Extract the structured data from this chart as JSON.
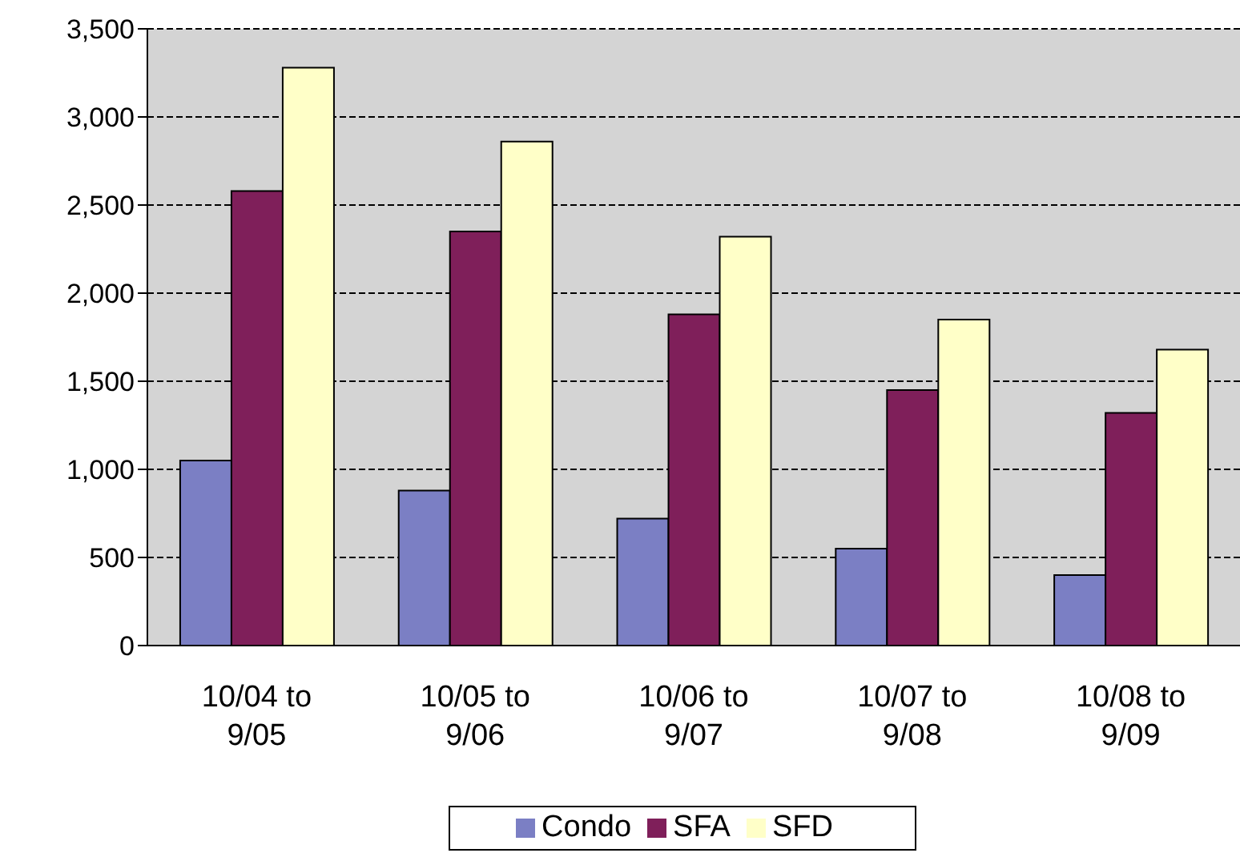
{
  "chart_data": {
    "type": "bar",
    "categories": [
      "10/04 to 9/05",
      "10/05 to 9/06",
      "10/06 to 9/07",
      "10/07 to 9/08",
      "10/08 to 9/09"
    ],
    "series": [
      {
        "name": "Condo",
        "color": "#7b7fc4",
        "values": [
          1050,
          880,
          720,
          550,
          400
        ]
      },
      {
        "name": "SFA",
        "color": "#7f1f5a",
        "values": [
          2580,
          2350,
          1880,
          1450,
          1320
        ]
      },
      {
        "name": "SFD",
        "color": "#ffffc8",
        "values": [
          3280,
          2860,
          2320,
          1850,
          1680
        ]
      }
    ],
    "ylim": [
      0,
      3500
    ],
    "yticks": [
      0,
      500,
      {
        "value": 1000,
        "label": "1,000"
      },
      {
        "value": 1500,
        "label": "1,500"
      },
      {
        "value": 2000,
        "label": "2,000"
      },
      {
        "value": 2500,
        "label": "2,500"
      },
      {
        "value": 3000,
        "label": "3,000"
      },
      {
        "value": 3500,
        "label": "3,500"
      }
    ],
    "grid": "y",
    "legend": "bottom"
  }
}
